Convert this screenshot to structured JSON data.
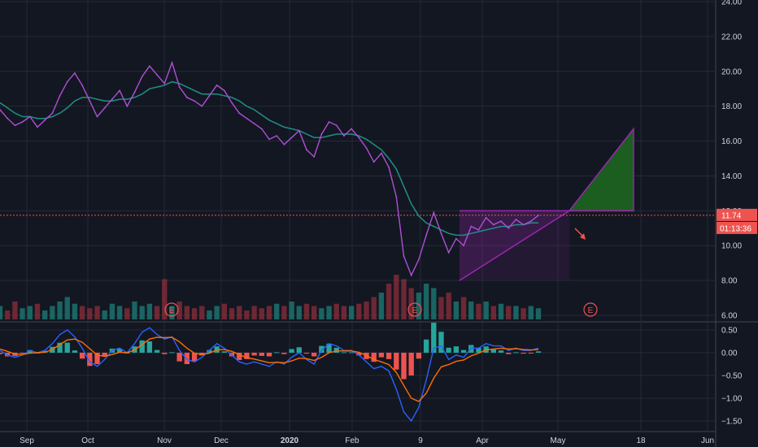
{
  "colors": {
    "background": "#131722",
    "grid": "#242a38",
    "axis_text": "#d1d4dc",
    "price_line": "#b04fd6",
    "moving_average": "#1f8f85",
    "volume_up": "#1d7f78",
    "volume_down": "#8c2f39",
    "macd_line": "#2962ff",
    "signal_line": "#ff6d00",
    "hist_up": "#26a69a",
    "hist_down": "#ef5350",
    "price_label_bg": "#ef5350",
    "pattern_fill": "#9c27b0",
    "target_fill": "#1b5e20",
    "earnings_marker": "#ef5350"
  },
  "chart_data": {
    "type": "line",
    "x_ticks": [
      "Sep",
      "Oct",
      "Nov",
      "Dec",
      "2020",
      "Feb",
      "9",
      "Apr",
      "May",
      "18",
      "Jun"
    ],
    "price_panel": {
      "y_ticks": [
        "24.00",
        "22.00",
        "20.00",
        "18.00",
        "16.00",
        "14.00",
        "12.00",
        "10.00",
        "8.00",
        "6.00"
      ],
      "ylim": [
        6,
        24
      ],
      "series": [
        {
          "values": [
            17.8,
            17.3,
            16.9,
            17.1,
            17.4,
            16.8,
            17.2,
            17.6,
            18.6,
            19.4,
            19.9,
            19.2,
            18.3,
            17.4,
            17.9,
            18.4,
            18.9,
            18.0,
            18.8,
            19.7,
            20.3,
            19.8,
            19.3,
            20.5,
            19.1,
            18.5,
            18.3,
            18.0,
            18.6,
            19.2,
            18.9,
            18.2,
            17.6,
            17.3,
            17.0,
            16.7,
            16.1,
            16.3,
            15.8,
            16.2,
            16.6,
            15.5,
            15.1,
            16.4,
            17.1,
            16.9,
            16.3,
            16.7,
            16.2,
            15.6,
            14.8,
            15.3,
            14.5,
            12.8,
            9.4,
            8.3,
            9.2,
            10.6,
            11.9,
            10.7,
            9.6,
            10.4,
            10.0,
            11.1,
            10.9,
            11.6,
            11.2,
            11.4,
            11.0,
            11.5,
            11.2,
            11.4,
            11.74
          ]
        },
        {
          "values": [
            18.2,
            17.9,
            17.6,
            17.4,
            17.4,
            17.3,
            17.3,
            17.4,
            17.6,
            17.9,
            18.3,
            18.5,
            18.5,
            18.4,
            18.3,
            18.3,
            18.4,
            18.4,
            18.5,
            18.7,
            19.0,
            19.1,
            19.2,
            19.4,
            19.3,
            19.1,
            18.9,
            18.7,
            18.7,
            18.7,
            18.6,
            18.5,
            18.3,
            18.0,
            17.8,
            17.5,
            17.2,
            17.0,
            16.8,
            16.7,
            16.6,
            16.4,
            16.2,
            16.2,
            16.3,
            16.4,
            16.4,
            16.4,
            16.3,
            16.1,
            15.8,
            15.5,
            15.0,
            14.4,
            13.4,
            12.4,
            11.7,
            11.3,
            11.1,
            10.9,
            10.7,
            10.6,
            10.6,
            10.7,
            10.8,
            10.9,
            11.0,
            11.1,
            11.1,
            11.2,
            11.2,
            11.3,
            11.3
          ]
        }
      ],
      "volume": [
        0.3,
        0.2,
        0.4,
        0.25,
        0.3,
        0.35,
        0.2,
        0.3,
        0.4,
        0.5,
        0.35,
        0.3,
        0.25,
        0.3,
        0.2,
        0.35,
        0.3,
        0.25,
        0.4,
        0.3,
        0.35,
        0.3,
        0.9,
        0.3,
        0.4,
        0.3,
        0.25,
        0.3,
        0.2,
        0.3,
        0.35,
        0.25,
        0.3,
        0.2,
        0.3,
        0.25,
        0.3,
        0.35,
        0.3,
        0.4,
        0.3,
        0.35,
        0.3,
        0.25,
        0.3,
        0.35,
        0.3,
        0.3,
        0.35,
        0.4,
        0.5,
        0.6,
        0.8,
        1.0,
        0.9,
        0.7,
        0.6,
        0.8,
        0.7,
        0.5,
        0.6,
        0.4,
        0.5,
        0.4,
        0.35,
        0.4,
        0.3,
        0.35,
        0.3,
        0.3,
        0.25,
        0.3,
        0.25
      ],
      "last_price_label": "11.74",
      "countdown_label": "01:13:36",
      "resistance_value": 12.0,
      "earnings_marker_label": "E"
    },
    "macd_panel": {
      "y_ticks": [
        "0.50",
        "0.00",
        "−0.50",
        "−1.00",
        "−1.50"
      ],
      "ylim": [
        -1.65,
        0.65
      ],
      "macd": [
        0.05,
        -0.05,
        -0.1,
        -0.05,
        0.05,
        0.0,
        0.05,
        0.2,
        0.4,
        0.5,
        0.35,
        0.1,
        -0.2,
        -0.3,
        -0.15,
        0.05,
        0.1,
        0.0,
        0.2,
        0.45,
        0.55,
        0.4,
        0.3,
        0.35,
        0.05,
        -0.15,
        -0.2,
        -0.1,
        0.05,
        0.2,
        0.1,
        -0.05,
        -0.2,
        -0.25,
        -0.2,
        -0.25,
        -0.3,
        -0.2,
        -0.25,
        -0.1,
        0.0,
        -0.15,
        -0.25,
        0.05,
        0.2,
        0.15,
        0.05,
        0.05,
        -0.05,
        -0.2,
        -0.35,
        -0.3,
        -0.4,
        -0.8,
        -1.3,
        -1.5,
        -1.2,
        -0.6,
        0.1,
        0.15,
        -0.15,
        -0.05,
        -0.1,
        0.1,
        0.1,
        0.2,
        0.15,
        0.15,
        0.05,
        0.1,
        0.05,
        0.05,
        0.1
      ],
      "signal": [
        0.08,
        0.03,
        -0.03,
        -0.04,
        -0.01,
        0.0,
        0.01,
        0.07,
        0.18,
        0.28,
        0.3,
        0.23,
        0.09,
        -0.05,
        -0.08,
        -0.04,
        0.01,
        0.0,
        0.06,
        0.18,
        0.3,
        0.34,
        0.33,
        0.34,
        0.24,
        0.1,
        -0.01,
        -0.04,
        -0.01,
        0.06,
        0.07,
        0.03,
        -0.04,
        -0.11,
        -0.14,
        -0.18,
        -0.22,
        -0.21,
        -0.22,
        -0.18,
        -0.12,
        -0.13,
        -0.17,
        -0.1,
        0.0,
        0.04,
        0.04,
        0.04,
        0.01,
        -0.06,
        -0.15,
        -0.2,
        -0.26,
        -0.43,
        -0.72,
        -1.0,
        -1.07,
        -0.89,
        -0.56,
        -0.31,
        -0.26,
        -0.19,
        -0.16,
        -0.07,
        -0.01,
        0.06,
        0.08,
        0.1,
        0.08,
        0.09,
        0.07,
        0.06,
        0.07
      ]
    }
  }
}
